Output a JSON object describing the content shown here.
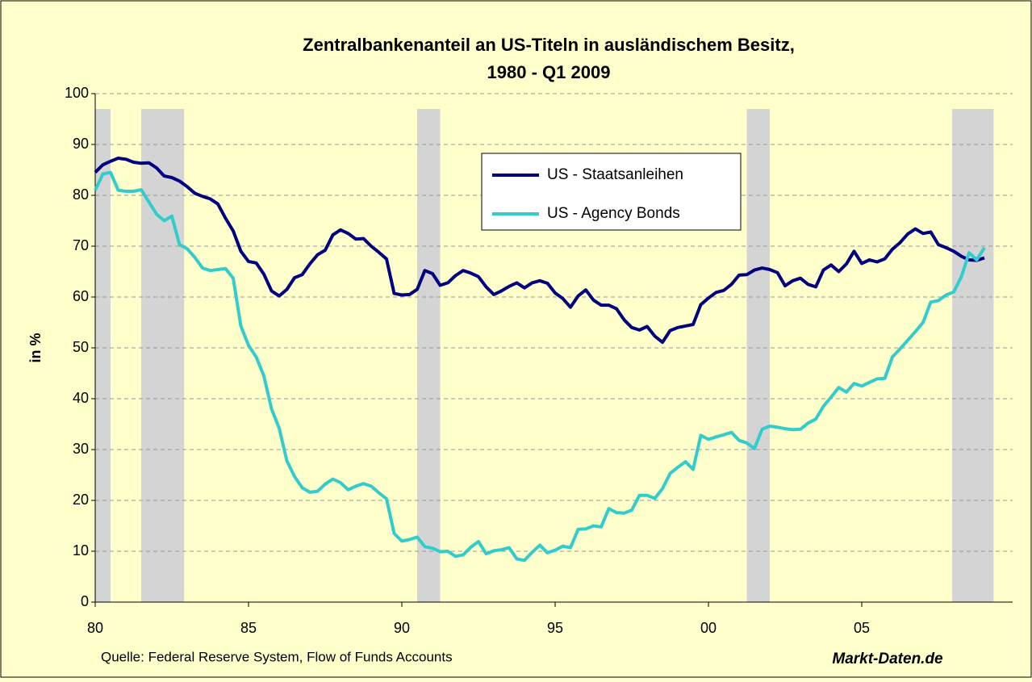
{
  "chart_data": {
    "type": "line",
    "title": [
      "Zentralbankenanteil an US-Titeln in ausländischem Besitz,",
      "1980 - Q1 2009"
    ],
    "ylabel": "in %",
    "source": "Quelle: Federal Reserve System, Flow of Funds Accounts",
    "brand": "Markt-Daten.de",
    "xlim": [
      1980,
      2009.92
    ],
    "xticks": [
      {
        "value": 1980,
        "label": "80"
      },
      {
        "value": 1985,
        "label": "85"
      },
      {
        "value": 1990,
        "label": "90"
      },
      {
        "value": 1995,
        "label": "95"
      },
      {
        "value": 2000,
        "label": "00"
      },
      {
        "value": 2005,
        "label": "05"
      }
    ],
    "ylim": [
      0,
      100
    ],
    "yticks": [
      0,
      10,
      20,
      30,
      40,
      50,
      60,
      70,
      80,
      90,
      100
    ],
    "grid": true,
    "recessions": [
      [
        1980.0,
        1980.5
      ],
      [
        1981.5,
        1982.9
      ],
      [
        1990.5,
        1991.25
      ],
      [
        2001.25,
        2002.0
      ],
      [
        2007.95,
        2009.3
      ]
    ],
    "recession_color": "#d4d4d4",
    "x": [
      1980,
      1980.25,
      1980.5,
      1980.75,
      1981,
      1981.25,
      1981.5,
      1981.75,
      1982,
      1982.25,
      1982.5,
      1982.75,
      1983,
      1983.25,
      1983.5,
      1983.75,
      1984,
      1984.25,
      1984.5,
      1984.75,
      1985,
      1985.25,
      1985.5,
      1985.75,
      1986,
      1986.25,
      1986.5,
      1986.75,
      1987,
      1987.25,
      1987.5,
      1987.75,
      1988,
      1988.25,
      1988.5,
      1988.75,
      1989,
      1989.25,
      1989.5,
      1989.75,
      1990,
      1990.25,
      1990.5,
      1990.75,
      1991,
      1991.25,
      1991.5,
      1991.75,
      1992,
      1992.25,
      1992.5,
      1992.75,
      1993,
      1993.25,
      1993.5,
      1993.75,
      1994,
      1994.25,
      1994.5,
      1994.75,
      1995,
      1995.25,
      1995.5,
      1995.75,
      1996,
      1996.25,
      1996.5,
      1996.75,
      1997,
      1997.25,
      1997.5,
      1997.75,
      1998,
      1998.25,
      1998.5,
      1998.75,
      1999,
      1999.25,
      1999.5,
      1999.75,
      2000,
      2000.25,
      2000.5,
      2000.75,
      2001,
      2001.25,
      2001.5,
      2001.75,
      2002,
      2002.25,
      2002.5,
      2002.75,
      2003,
      2003.25,
      2003.5,
      2003.75,
      2004,
      2004.25,
      2004.5,
      2004.75,
      2005,
      2005.25,
      2005.5,
      2005.75,
      2006,
      2006.25,
      2006.5,
      2006.75,
      2007,
      2007.25,
      2007.5,
      2007.75,
      2008,
      2008.25,
      2008.5,
      2008.75,
      2009
    ],
    "series": [
      {
        "name": "US - Staatsanleihen",
        "color": "#000080",
        "values": [
          84.5,
          86,
          86.7,
          87.3,
          87.1,
          86.5,
          86.3,
          86.4,
          85.4,
          83.8,
          83.5,
          82.8,
          81.7,
          80.4,
          79.8,
          79.3,
          78.3,
          75.5,
          73,
          69,
          67,
          66.7,
          64.5,
          61.2,
          60.2,
          61.5,
          63.8,
          64.4,
          66.5,
          68.3,
          69.2,
          72.2,
          73.2,
          72.5,
          71.4,
          71.5,
          70,
          68.8,
          67.5,
          60.7,
          60.4,
          60.5,
          61.5,
          65.2,
          64.6,
          62.3,
          62.8,
          64.2,
          65.2,
          64.7,
          64,
          62,
          60.5,
          61.2,
          62.1,
          62.8,
          61.8,
          62.8,
          63.2,
          62.7,
          60.8,
          59.7,
          58,
          60.2,
          61.4,
          59.4,
          58.4,
          58.4,
          57.7,
          55.5,
          54,
          53.5,
          54.2,
          52.3,
          51.1,
          53.4,
          54,
          54.3,
          54.6,
          58.5,
          59.8,
          60.9,
          61.3,
          62.5,
          64.3,
          64.4,
          65.3,
          65.7,
          65.4,
          64.8,
          62.2,
          63.2,
          63.7,
          62.5,
          62,
          65.3,
          66.3,
          65,
          66.5,
          69,
          66.6,
          67.3,
          66.9,
          67.5,
          69.4,
          70.7,
          72.4,
          73.4,
          72.5,
          72.8,
          70.3,
          69.7,
          69,
          68,
          67.3,
          67.2,
          67.7
        ]
      },
      {
        "name": "US - Agency Bonds",
        "color": "#33cccc",
        "values": [
          81,
          84.2,
          84.5,
          81,
          80.8,
          80.8,
          81.1,
          78.7,
          76.3,
          75,
          75.9,
          70.3,
          69.5,
          67.8,
          65.7,
          65.2,
          65.4,
          65.6,
          63.7,
          54.3,
          50.5,
          48.2,
          44.5,
          38,
          34.2,
          27.8,
          24.7,
          22.5,
          21.6,
          21.8,
          23.2,
          24.2,
          23.5,
          22.1,
          22.8,
          23.3,
          22.8,
          21.5,
          20.3,
          13.5,
          12,
          12.3,
          12.8,
          10.9,
          10.6,
          9.9,
          10,
          9,
          9.3,
          10.8,
          11.9,
          9.5,
          10.1,
          10.3,
          10.7,
          8.5,
          8.2,
          9.8,
          11.2,
          9.7,
          10.2,
          11,
          10.7,
          14.3,
          14.4,
          15,
          14.8,
          18.4,
          17.6,
          17.5,
          18.1,
          21,
          21,
          20.4,
          22.3,
          25.3,
          26.5,
          27.6,
          26.1,
          32.8,
          32,
          32.5,
          32.9,
          33.4,
          31.8,
          31.3,
          30.2,
          34,
          34.6,
          34.4,
          34.1,
          33.9,
          34,
          35.2,
          36,
          38.5,
          40.3,
          42.2,
          41.3,
          43,
          42.5,
          43.2,
          43.9,
          44,
          48.2,
          49.8,
          51.5,
          53.2,
          55,
          59,
          59.3,
          60.4,
          61,
          64,
          68.7,
          67.3,
          69.7
        ]
      }
    ]
  }
}
